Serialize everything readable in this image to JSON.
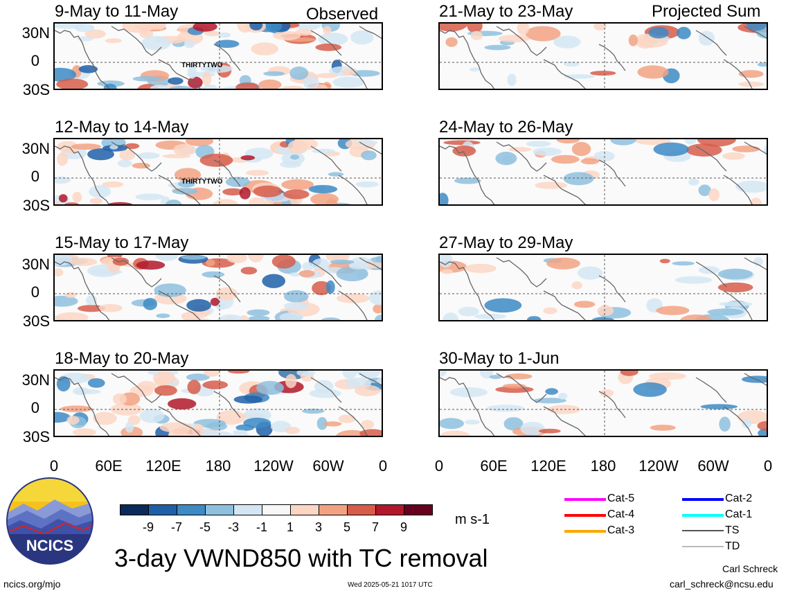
{
  "figure_title": "3-day VWND850 with TC removal",
  "column_headers": {
    "left": "Observed",
    "right": "Projected Sum"
  },
  "panels_left": [
    {
      "title": "9-May to 11-May",
      "storm_label": "THIRTYTWO"
    },
    {
      "title": "12-May to 14-May",
      "storm_label": "THIRTYTWO"
    },
    {
      "title": "15-May to 17-May"
    },
    {
      "title": "18-May to 20-May"
    }
  ],
  "panels_right": [
    {
      "title": "21-May to 23-May"
    },
    {
      "title": "24-May to 26-May"
    },
    {
      "title": "27-May to 29-May"
    },
    {
      "title": "30-May to 1-Jun"
    }
  ],
  "lat_labels": [
    "30N",
    "0",
    "30S"
  ],
  "lon_labels": [
    "0",
    "60E",
    "120E",
    "180",
    "120W",
    "60W",
    "0"
  ],
  "colorbar": {
    "unit": "m s-1",
    "labels": [
      "-9",
      "-7",
      "-5",
      "-3",
      "-1",
      "1",
      "3",
      "5",
      "7",
      "9"
    ],
    "colors": [
      "#0a2a5a",
      "#1f5fa8",
      "#3d8ac4",
      "#8ec0de",
      "#d4e6f3",
      "#f7f7f7",
      "#fbd6c4",
      "#f2a283",
      "#d65d4a",
      "#b2182b",
      "#67001f"
    ]
  },
  "tc_legend": [
    {
      "label": "Cat-5",
      "color": "#ff00ff"
    },
    {
      "label": "Cat-4",
      "color": "#ff0000"
    },
    {
      "label": "Cat-3",
      "color": "#ffa500"
    },
    {
      "label": "Cat-2",
      "color": "#0000ff"
    },
    {
      "label": "Cat-1",
      "color": "#00ffff"
    },
    {
      "label": "TS",
      "color": "#555555"
    },
    {
      "label": "TD",
      "color": "#bbbbbb"
    }
  ],
  "logo_text": "NCICS",
  "footer": {
    "url": "ncics.org/mjo",
    "timestamp": "Wed 2025-05-21 1017 UTC",
    "author": "Carl Schreck",
    "email": "carl_schreck@ncsu.edu"
  }
}
